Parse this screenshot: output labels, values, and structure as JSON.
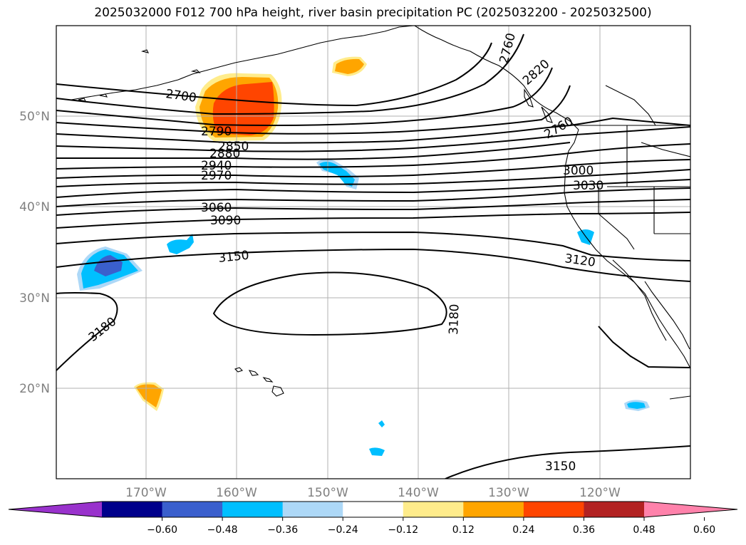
{
  "title": "2025032000 F012 700 hPa height, river basin precipitation PC (2025032200 - 2025032500)",
  "latitude_labels": [
    "50°N",
    "40°N",
    "30°N",
    "20°N"
  ],
  "longitude_labels": [
    "170°W",
    "160°W",
    "150°W",
    "140°W",
    "130°W",
    "120°W"
  ],
  "contour_labels": [
    "2700",
    "2790",
    "2850",
    "2880",
    "2940",
    "2970",
    "3060",
    "3090",
    "3150",
    "3180",
    "3180",
    "3000",
    "3030",
    "3120",
    "2820",
    "2760",
    "2760",
    "3150"
  ],
  "colorbar": {
    "tick_labels": [
      "−0.60",
      "−0.48",
      "−0.36",
      "−0.24",
      "−0.12",
      "0.12",
      "0.24",
      "0.36",
      "0.48",
      "0.60"
    ],
    "colors": [
      "#9932cc",
      "#00008b",
      "#3a5fcd",
      "#00bfff",
      "#add8f7",
      "#ffffff",
      "#ffec8b",
      "#ffa500",
      "#ff4500",
      "#b22222",
      "#ff82ab"
    ]
  }
}
